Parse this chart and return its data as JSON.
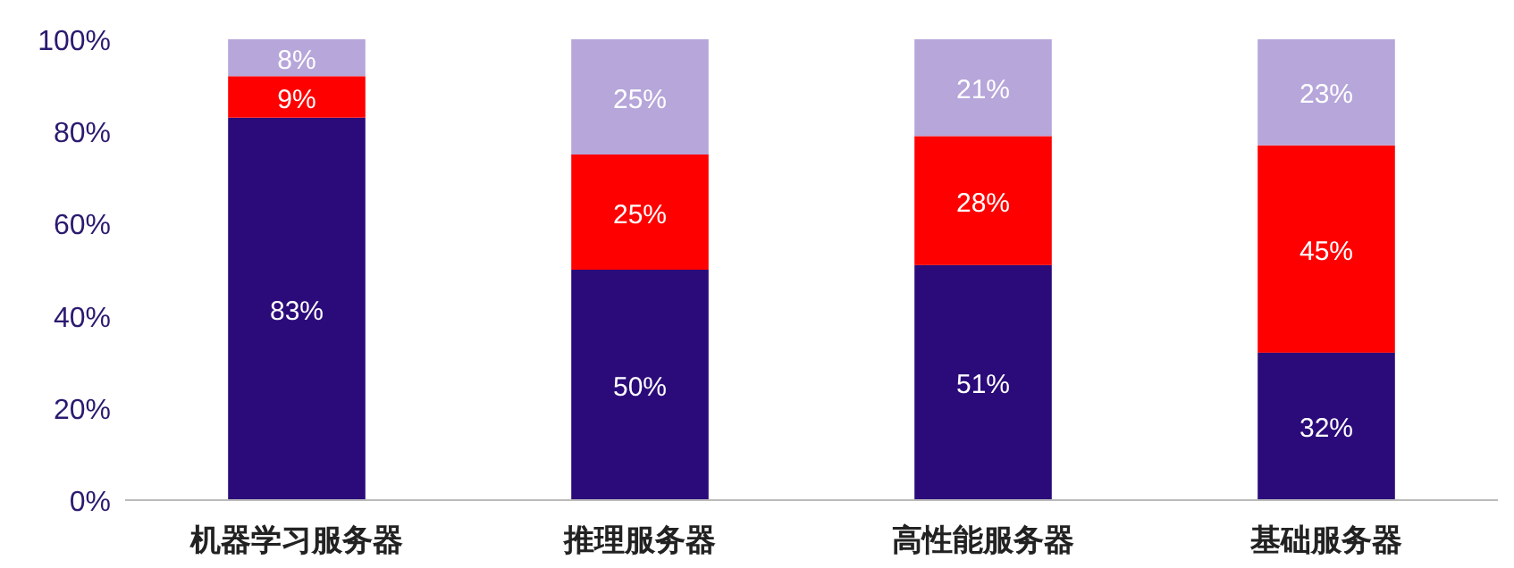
{
  "chart_data": {
    "type": "bar",
    "stacked": true,
    "categories": [
      "机器学习服务器",
      "推理服务器",
      "高性能服务器",
      "基础服务器"
    ],
    "series": [
      {
        "color": "#2b0b7a",
        "values": [
          83,
          50,
          51,
          32
        ],
        "value_labels": [
          "83%",
          "50%",
          "51%",
          "32%"
        ]
      },
      {
        "color": "#ff0000",
        "values": [
          9,
          25,
          28,
          45
        ],
        "value_labels": [
          "9%",
          "25%",
          "28%",
          "45%"
        ]
      },
      {
        "color": "#b6a6da",
        "values": [
          8,
          25,
          21,
          23
        ],
        "value_labels": [
          "8%",
          "25%",
          "21%",
          "23%"
        ]
      }
    ],
    "ylim": [
      0,
      100
    ],
    "yticks": [
      {
        "value": 0,
        "label": "0%"
      },
      {
        "value": 20,
        "label": "20%"
      },
      {
        "value": 40,
        "label": "40%"
      },
      {
        "value": 60,
        "label": "60%"
      },
      {
        "value": 80,
        "label": "80%"
      },
      {
        "value": 100,
        "label": "100%"
      }
    ]
  }
}
